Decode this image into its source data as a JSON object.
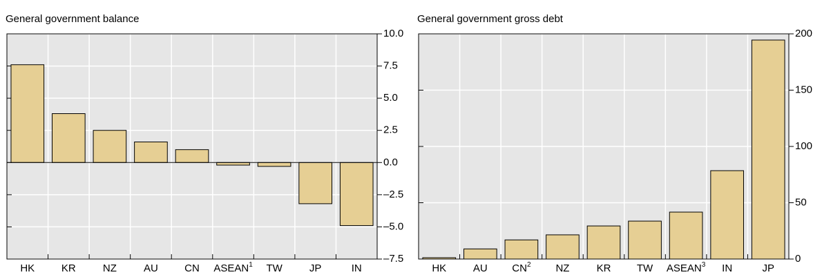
{
  "chart_data": [
    {
      "type": "bar",
      "title": "General government balance",
      "categories": [
        "HK",
        "KR",
        "NZ",
        "AU",
        "CN",
        {
          "label": "ASEAN",
          "sup": "1"
        },
        "TW",
        "JP",
        "IN"
      ],
      "values": [
        7.6,
        3.8,
        2.5,
        1.6,
        1.0,
        -0.2,
        -0.3,
        -3.2,
        -4.9
      ],
      "color": "#e6cf94",
      "ylim": [
        -7.5,
        10
      ],
      "yticks": [
        {
          "value": -7.5,
          "label": "–7.5"
        },
        {
          "value": -5,
          "label": "–5.0"
        },
        {
          "value": -2.5,
          "label": "–2.5"
        },
        {
          "value": 0,
          "label": "0.0"
        },
        2.5,
        {
          "value": 5,
          "label": "5.0"
        },
        7.5,
        {
          "value": 10,
          "label": "10.0"
        }
      ],
      "grid": true
    },
    {
      "type": "bar",
      "title": "General government gross debt",
      "categories": [
        "HK",
        "AU",
        {
          "label": "CN",
          "sup": "2"
        },
        "NZ",
        "KR",
        "TW",
        {
          "label": "ASEAN",
          "sup": "3"
        },
        "IN",
        "JP"
      ],
      "values": [
        1.2,
        9,
        17,
        21.5,
        29.4,
        33.7,
        41.7,
        78.5,
        194.5
      ],
      "color": "#e6cf94",
      "ylim": [
        0,
        200
      ],
      "yticks": [
        0,
        50,
        100,
        150,
        200
      ],
      "grid": true
    }
  ]
}
